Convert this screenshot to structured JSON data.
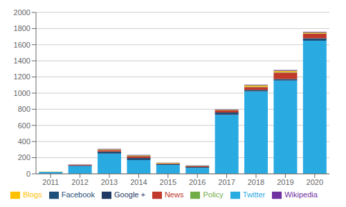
{
  "chart_data": {
    "type": "bar",
    "stacked": true,
    "categories": [
      "2011",
      "2012",
      "2013",
      "2014",
      "2015",
      "2016",
      "2017",
      "2018",
      "2019",
      "2020"
    ],
    "series": [
      {
        "name": "Twitter",
        "color": "#29ABE2",
        "values": [
          22,
          95,
          250,
          170,
          110,
          75,
          730,
          1020,
          1155,
          1650
        ]
      },
      {
        "name": "Facebook",
        "color": "#1F4E79",
        "values": [
          2,
          10,
          25,
          25,
          10,
          10,
          30,
          20,
          20,
          30
        ]
      },
      {
        "name": "News",
        "color": "#C0392B",
        "values": [
          1,
          5,
          20,
          25,
          10,
          10,
          25,
          35,
          80,
          55
        ]
      },
      {
        "name": "Policy",
        "color": "#70AD47",
        "values": [
          0,
          1,
          2,
          3,
          2,
          2,
          3,
          5,
          5,
          5
        ]
      },
      {
        "name": "Blogs",
        "color": "#FFC000",
        "values": [
          1,
          2,
          5,
          5,
          3,
          3,
          5,
          15,
          15,
          10
        ]
      },
      {
        "name": "Google +",
        "color": "#1F3864",
        "values": [
          1,
          2,
          5,
          5,
          3,
          3,
          3,
          5,
          5,
          5
        ]
      },
      {
        "name": "Wikipedia",
        "color": "#7030A0",
        "values": [
          0,
          1,
          2,
          2,
          1,
          1,
          2,
          5,
          5,
          5
        ]
      }
    ],
    "ylim": [
      0,
      2000
    ],
    "yticks": [
      0,
      200,
      400,
      600,
      800,
      1000,
      1200,
      1400,
      1600,
      1800,
      2000
    ],
    "grid": true,
    "legend": "bottom"
  }
}
